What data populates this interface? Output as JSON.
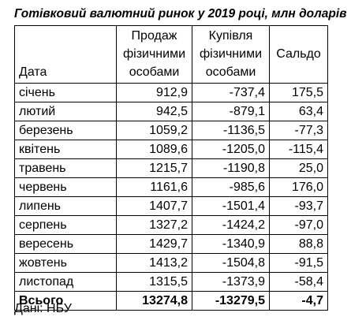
{
  "title": "Готівковий валютний ринок у 2019 році, млн доларів",
  "headers": {
    "date": "Дата",
    "sale_line1": "Продаж",
    "sale_line2": "фізичними",
    "sale_line3": "особами",
    "buy_line1": "Купівля",
    "buy_line2": "фізичними",
    "buy_line3": "особами",
    "balance": "Сальдо"
  },
  "rows": [
    {
      "month": "січень",
      "sale": "912,9",
      "buy": "-737,4",
      "balance": "175,5"
    },
    {
      "month": "лютий",
      "sale": "942,5",
      "buy": "-879,1",
      "balance": "63,4"
    },
    {
      "month": "березень",
      "sale": "1059,2",
      "buy": "-1136,5",
      "balance": "-77,3"
    },
    {
      "month": "квітень",
      "sale": "1089,6",
      "buy": "-1205,0",
      "balance": "-115,4"
    },
    {
      "month": "травень",
      "sale": "1215,7",
      "buy": "-1190,8",
      "balance": "25,0"
    },
    {
      "month": "червень",
      "sale": "1161,6",
      "buy": "-985,6",
      "balance": "176,0"
    },
    {
      "month": "липень",
      "sale": "1407,7",
      "buy": "-1501,4",
      "balance": "-93,7"
    },
    {
      "month": "серпень",
      "sale": "1327,2",
      "buy": "-1424,2",
      "balance": "-97,0"
    },
    {
      "month": "вересень",
      "sale": "1429,7",
      "buy": "-1340,9",
      "balance": "88,8"
    },
    {
      "month": "жовтень",
      "sale": "1413,2",
      "buy": "-1504,8",
      "balance": "-91,5"
    },
    {
      "month": "листопад",
      "sale": "1315,5",
      "buy": "-1373,9",
      "balance": "-58,4"
    }
  ],
  "total": {
    "label": "Всього",
    "sale": "13274,8",
    "buy": "-13279,5",
    "balance": "-4,7"
  },
  "source": "Дані: НБУ"
}
